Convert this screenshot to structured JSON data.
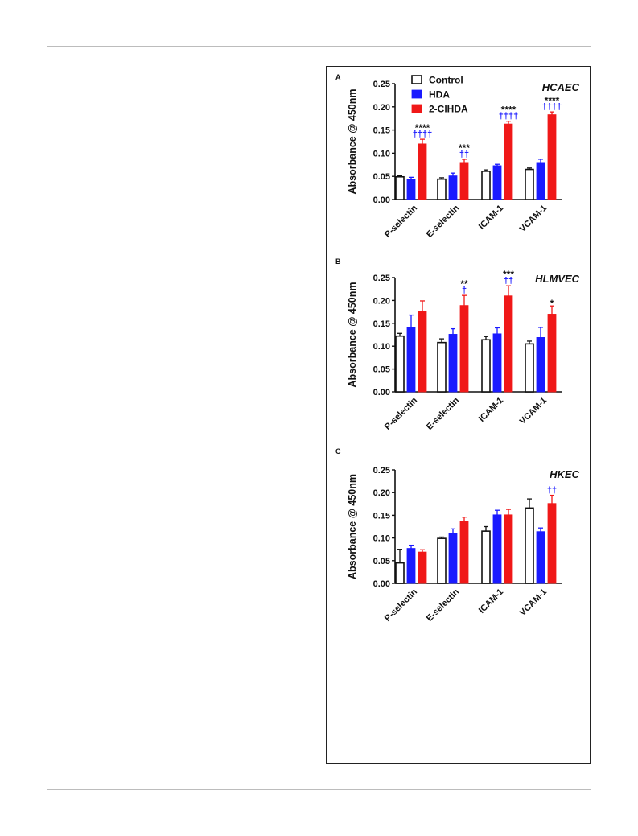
{
  "colors": {
    "control_fill": "#ffffff",
    "control_stroke": "#111111",
    "hda": "#1a1aff",
    "clhda": "#f01818",
    "black_sig": "#111111",
    "blue_sig": "#1a1aff"
  },
  "chart_data": [
    {
      "type": "bar",
      "panel": "A",
      "title": "HCAEC",
      "ylabel": "Absorbance @ 450nm",
      "ylim": [
        0,
        0.25
      ],
      "yticks": [
        "0.00",
        "0.05",
        "0.10",
        "0.15",
        "0.20",
        "0.25"
      ],
      "categories": [
        "P-selectin",
        "E-selectin",
        "ICAM-1",
        "VCAM-1"
      ],
      "legend": [
        "Control",
        "HDA",
        "2-ClHDA"
      ],
      "legend_position": "top-left",
      "series": [
        {
          "name": "Control",
          "values": [
            0.049,
            0.044,
            0.061,
            0.065
          ],
          "errors": [
            0.002,
            0.003,
            0.003,
            0.003
          ]
        },
        {
          "name": "HDA",
          "values": [
            0.043,
            0.051,
            0.073,
            0.08
          ],
          "errors": [
            0.005,
            0.006,
            0.003,
            0.007
          ]
        },
        {
          "name": "2-ClHDA",
          "values": [
            0.12,
            0.08,
            0.163,
            0.183
          ],
          "errors": [
            0.01,
            0.007,
            0.006,
            0.006
          ]
        }
      ],
      "annotations": [
        {
          "category": 0,
          "black": "****",
          "blue": "††††"
        },
        {
          "category": 1,
          "black": "***",
          "blue": "††"
        },
        {
          "category": 2,
          "black": "****",
          "blue": "††††"
        },
        {
          "category": 3,
          "black": "****",
          "blue": "††††"
        }
      ]
    },
    {
      "type": "bar",
      "panel": "B",
      "title": "HLMVEC",
      "ylabel": "Absorbance @ 450nm",
      "ylim": [
        0,
        0.25
      ],
      "yticks": [
        "0.00",
        "0.05",
        "0.10",
        "0.15",
        "0.20",
        "0.25"
      ],
      "categories": [
        "P-selectin",
        "E-selectin",
        "ICAM-1",
        "VCAM-1"
      ],
      "series": [
        {
          "name": "Control",
          "values": [
            0.122,
            0.108,
            0.114,
            0.105
          ],
          "errors": [
            0.006,
            0.008,
            0.007,
            0.006
          ]
        },
        {
          "name": "HDA",
          "values": [
            0.141,
            0.126,
            0.127,
            0.119
          ],
          "errors": [
            0.027,
            0.012,
            0.013,
            0.022
          ]
        },
        {
          "name": "2-ClHDA",
          "values": [
            0.176,
            0.189,
            0.21,
            0.17
          ],
          "errors": [
            0.023,
            0.022,
            0.022,
            0.018
          ]
        }
      ],
      "annotations": [
        {
          "category": 1,
          "black": "**",
          "blue": "†"
        },
        {
          "category": 2,
          "black": "***",
          "blue": "††"
        },
        {
          "category": 3,
          "black": "*",
          "blue": ""
        }
      ]
    },
    {
      "type": "bar",
      "panel": "C",
      "title": "HKEC",
      "ylabel": "Absorbance @ 450nm",
      "ylim": [
        0,
        0.25
      ],
      "yticks": [
        "0.00",
        "0.05",
        "0.10",
        "0.15",
        "0.20",
        "0.25"
      ],
      "categories": [
        "P-selectin",
        "E-selectin",
        "ICAM-1",
        "VCAM-1"
      ],
      "series": [
        {
          "name": "Control",
          "values": [
            0.045,
            0.099,
            0.115,
            0.166
          ],
          "errors": [
            0.03,
            0.003,
            0.01,
            0.02
          ]
        },
        {
          "name": "HDA",
          "values": [
            0.077,
            0.11,
            0.151,
            0.114
          ],
          "errors": [
            0.007,
            0.01,
            0.01,
            0.008
          ]
        },
        {
          "name": "2-ClHDA",
          "values": [
            0.069,
            0.136,
            0.151,
            0.176
          ],
          "errors": [
            0.005,
            0.01,
            0.012,
            0.018
          ]
        }
      ],
      "annotations": [
        {
          "category": 3,
          "black": "",
          "blue": "††"
        }
      ]
    }
  ]
}
